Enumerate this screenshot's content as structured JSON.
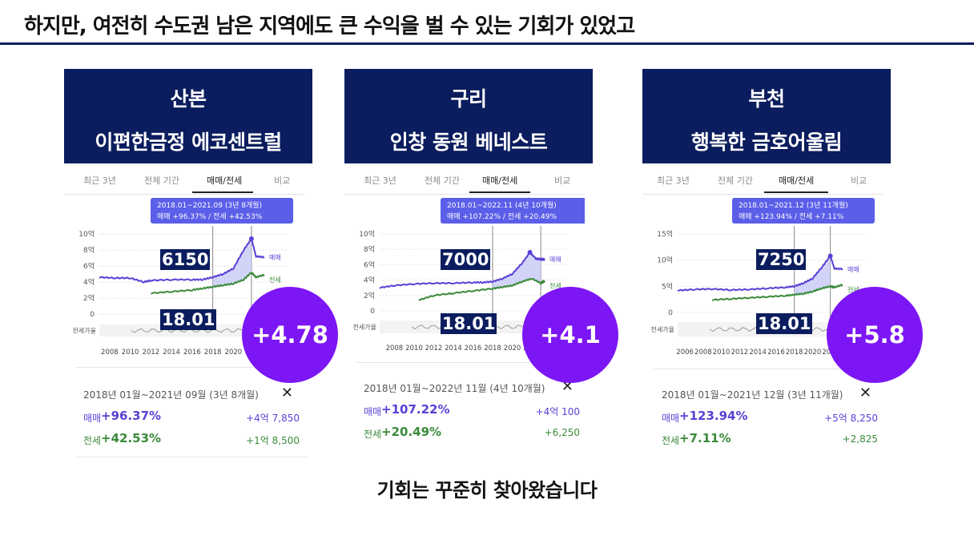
{
  "heading": "하지만, 여전히 수도권 남은 지역에도 큰 수익을 벌 수 있는 기회가 있었고",
  "footer": "기회는 꾸준히 찾아왔습니다",
  "colors": {
    "navy": "#0b1d5e",
    "sale": "#5b3fd6",
    "jeonse": "#3a8a3a",
    "badge": "#7c16f5"
  },
  "tabs": [
    "최근 3년",
    "전체 기간",
    "매매/전세",
    "비교"
  ],
  "cards": [
    {
      "title_line1": "산본",
      "title_line2": "이편한금정 에코센트럴",
      "tooltip_line1": "2018.01~2021.09 (3년 8개월)",
      "tooltip_line2": "매매 +96.37%  /  전세 +42.53%",
      "price_box": "6150",
      "date_box": "18.01",
      "badge": "+4.78",
      "period": "2018년 01월~2021년 09월 (3년 8개월)",
      "sale_label": "매매",
      "sale_pct": "+96.37%",
      "sale_amt": "+4억 7,850",
      "jeonse_label": "전세",
      "jeonse_pct": "+42.53%",
      "jeonse_amt": "+1억 8,500",
      "close": "✕"
    },
    {
      "title_line1": "구리",
      "title_line2": "인창 동원 베네스트",
      "tooltip_line1": "2018.01~2022.11 (4년 10개월)",
      "tooltip_line2": "매매 +107.22%  /  전세 +20.49%",
      "price_box": "7000",
      "date_box": "18.01",
      "badge": "+4.1",
      "period": "2018년 01월~2022년 11월 (4년 10개월)",
      "sale_label": "매매",
      "sale_pct": "+107.22%",
      "sale_amt": "+4억 100",
      "jeonse_label": "전세",
      "jeonse_pct": "+20.49%",
      "jeonse_amt": "+6,250",
      "close": "✕"
    },
    {
      "title_line1": "부천",
      "title_line2": "행복한 금호어울림",
      "tooltip_line1": "2018.01~2021.12 (3년 11개월)",
      "tooltip_line2": "매매 +123.94%  /  전세 +7.11%",
      "price_box": "7250",
      "date_box": "18.01",
      "badge": "+5.8",
      "period": "2018년 01월~2021년 12월 (3년 11개월)",
      "sale_label": "매매",
      "sale_pct": "+123.94%",
      "sale_amt": "+5억 8,250",
      "jeonse_label": "전세",
      "jeonse_pct": "+7.11%",
      "jeonse_amt": "+2,825",
      "close": "✕"
    }
  ],
  "chart_data": [
    {
      "type": "line",
      "title": "산본 이편한금정 에코센트럴",
      "yticks": [
        "0",
        "2억",
        "4억",
        "6억",
        "8억",
        "10억"
      ],
      "ylim": [
        0,
        10
      ],
      "xticks": [
        "2008",
        "2010",
        "2012",
        "2014",
        "2016",
        "2018",
        "2020",
        "2022"
      ],
      "xlim": [
        2007,
        2023
      ],
      "band_label": "전세가율",
      "highlight": [
        2018.0,
        2021.75
      ],
      "series": [
        {
          "name": "매매",
          "x": [
            2007,
            2008.5,
            2010,
            2011.3,
            2012,
            2014,
            2016,
            2017,
            2018,
            2019,
            2020,
            2021,
            2021.75,
            2022.2,
            2023
          ],
          "values": [
            4.6,
            4.5,
            4.5,
            4.0,
            4.2,
            4.3,
            4.3,
            4.3,
            4.6,
            5.0,
            5.7,
            8.0,
            9.4,
            7.2,
            7.1
          ]
        },
        {
          "name": "전세",
          "x": [
            2012,
            2014,
            2016,
            2017,
            2018,
            2019,
            2020,
            2021,
            2021.75,
            2022.2,
            2023
          ],
          "values": [
            2.6,
            2.8,
            3.0,
            3.2,
            3.4,
            3.6,
            3.8,
            4.3,
            5.2,
            4.6,
            4.9
          ]
        }
      ]
    },
    {
      "type": "line",
      "title": "구리 인창 동원 베네스트",
      "yticks": [
        "0",
        "2억",
        "4억",
        "6억",
        "8억",
        "10억"
      ],
      "ylim": [
        0,
        10
      ],
      "xticks": [
        "2008",
        "2010",
        "2012",
        "2014",
        "2016",
        "2018",
        "2020",
        "2022"
      ],
      "xlim": [
        2006.5,
        2023.3
      ],
      "band_label": "전세가율",
      "highlight": [
        2018.0,
        2022.9
      ],
      "series": [
        {
          "name": "매매",
          "x": [
            2006.5,
            2008,
            2010,
            2012,
            2014,
            2016,
            2017,
            2018,
            2019,
            2020,
            2021,
            2021.8,
            2022.4,
            2022.9,
            2023.3
          ],
          "values": [
            3.0,
            3.3,
            3.5,
            3.6,
            3.6,
            3.7,
            3.7,
            3.8,
            4.2,
            4.8,
            6.2,
            7.6,
            6.8,
            6.7,
            6.7
          ]
        },
        {
          "name": "전세",
          "x": [
            2010.5,
            2012,
            2014,
            2016,
            2018,
            2019,
            2020,
            2021,
            2022,
            2022.9,
            2023.3
          ],
          "values": [
            1.4,
            2.0,
            2.3,
            2.6,
            2.9,
            3.1,
            3.3,
            3.8,
            4.2,
            3.6,
            3.9
          ]
        }
      ]
    },
    {
      "type": "line",
      "title": "부천 행복한 금호어울림",
      "yticks": [
        "0",
        "5억",
        "10억",
        "15억"
      ],
      "ylim": [
        0,
        15
      ],
      "xticks": [
        "2006",
        "2008",
        "2010",
        "2012",
        "2014",
        "2016",
        "2018",
        "2020",
        "2022"
      ],
      "xlim": [
        2005.2,
        2023.3
      ],
      "band_label": "전세가율",
      "highlight": [
        2018.0,
        2021.95
      ],
      "series": [
        {
          "name": "매매",
          "x": [
            2005.2,
            2007,
            2009,
            2011,
            2013,
            2015,
            2017,
            2018,
            2019,
            2020,
            2021,
            2021.95,
            2022.4,
            2023.3
          ],
          "values": [
            4.2,
            4.4,
            4.5,
            4.3,
            4.4,
            4.6,
            4.8,
            5.0,
            5.6,
            6.5,
            8.6,
            10.8,
            8.4,
            8.3
          ]
        },
        {
          "name": "전세",
          "x": [
            2009,
            2011,
            2013,
            2015,
            2017,
            2018,
            2019,
            2020,
            2021,
            2021.95,
            2022.4,
            2023.3
          ],
          "values": [
            2.4,
            2.6,
            2.8,
            3.0,
            3.2,
            3.4,
            3.6,
            4.0,
            4.6,
            5.0,
            4.8,
            5.3
          ]
        }
      ]
    }
  ]
}
